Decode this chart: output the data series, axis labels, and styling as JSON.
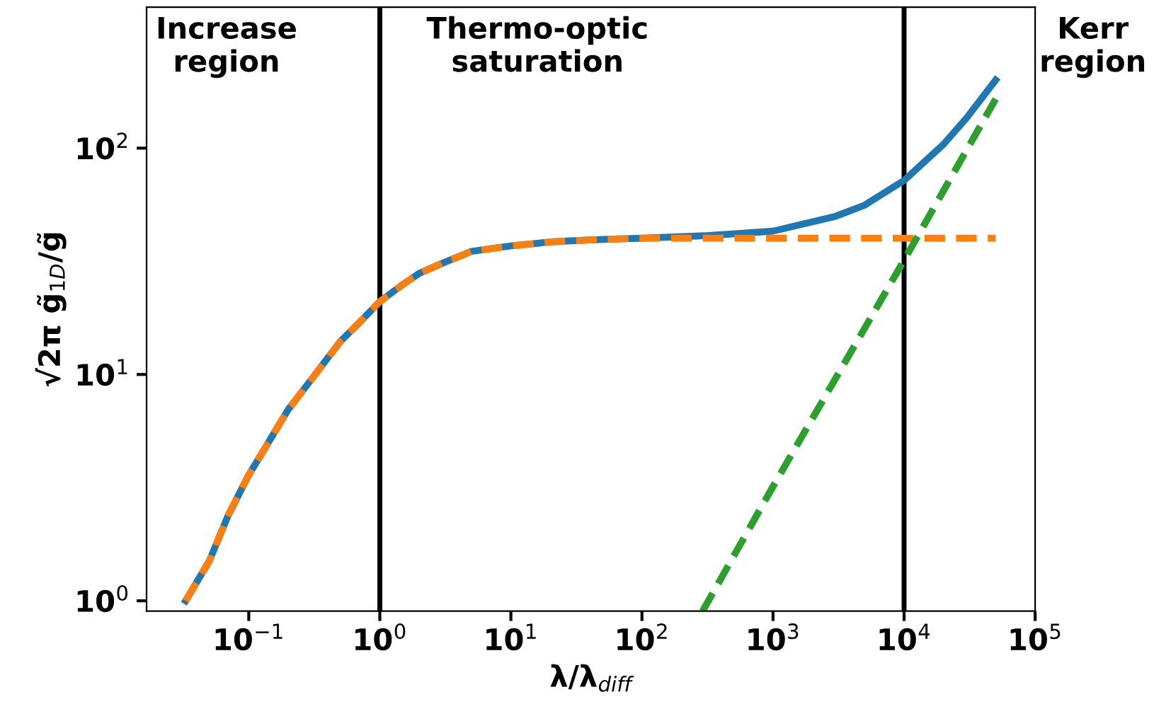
{
  "chart_data": {
    "type": "line",
    "xlabel": "λ/λ$_{diff}$",
    "ylabel": "√2π g̃$_{1D}$/g̃",
    "log": "xy",
    "xlim": [
      0.0166,
      100000
    ],
    "ylim": [
      0.9,
      420
    ],
    "xticks": [
      {
        "value": 0.1,
        "label": "10$^{−1}$"
      },
      {
        "value": 1,
        "label": "10$^{0}$"
      },
      {
        "value": 10,
        "label": "10$^{1}$"
      },
      {
        "value": 100,
        "label": "10$^{2}$"
      },
      {
        "value": 1000,
        "label": "10$^{3}$"
      },
      {
        "value": 10000,
        "label": "10$^{4}$"
      },
      {
        "value": 100000,
        "label": "10$^{5}$"
      }
    ],
    "yticks": [
      {
        "value": 1,
        "label": "10$^{0}$"
      },
      {
        "value": 10,
        "label": "10$^{1}$"
      },
      {
        "value": 100,
        "label": "10$^{2}$"
      }
    ],
    "grid": false,
    "legend": false,
    "series": [
      {
        "color": "#1f77b4",
        "line_style": "solid",
        "x": [
          0.033,
          0.05,
          0.07,
          0.1,
          0.2,
          0.3,
          0.5,
          0.7,
          1,
          1.5,
          2,
          3,
          5,
          10,
          20,
          30,
          50,
          100,
          300,
          1000,
          3000,
          5000,
          10000,
          20000,
          30000,
          50000
        ],
        "values": [
          1,
          1.5,
          2.4,
          3.6,
          7,
          9.5,
          14,
          17,
          21,
          25,
          28,
          31,
          35,
          37,
          38.5,
          39,
          39.5,
          40,
          41,
          43,
          50,
          56,
          72,
          104,
          136,
          200
        ]
      },
      {
        "color": "#ff7f0e",
        "line_style": "dashed",
        "x": [
          0.033,
          0.05,
          0.07,
          0.1,
          0.2,
          0.3,
          0.5,
          0.7,
          1,
          1.5,
          2,
          3,
          5,
          10,
          20,
          30,
          50,
          100,
          1000,
          10000,
          50000
        ],
        "values": [
          1,
          1.5,
          2.4,
          3.6,
          7,
          9.5,
          14,
          17,
          21,
          25,
          28,
          31,
          35,
          37,
          38.5,
          39,
          39.5,
          40,
          40,
          40,
          40
        ]
      },
      {
        "color": "#2ca02c",
        "line_style": "dashed",
        "x": [
          290,
          1000,
          10000,
          50000
        ],
        "values": [
          0.9,
          3.2,
          32,
          165
        ]
      }
    ],
    "ref_lines": [
      {
        "axis": "x",
        "value": 1,
        "color": "#000000"
      },
      {
        "axis": "x",
        "value": 10000,
        "color": "#000000"
      }
    ],
    "annotations": [
      "Increase\nregion",
      "Thermo-optic\nsaturation",
      "Kerr\nregion"
    ]
  }
}
